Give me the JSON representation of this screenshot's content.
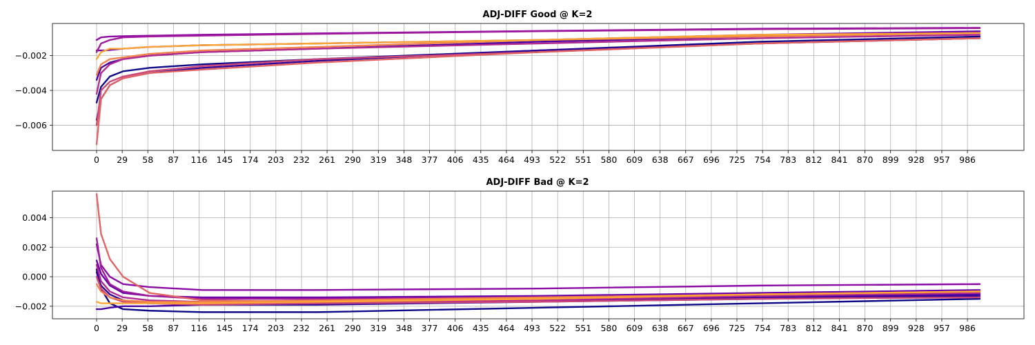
{
  "chart_data": [
    {
      "type": "line",
      "title": "ADJ-DIFF Good @ K=2",
      "xlabel": "",
      "ylabel": "",
      "xlim": [
        -50,
        1050
      ],
      "ylim": [
        -0.00745,
        -0.00015
      ],
      "x_ticks": [
        0,
        29,
        58,
        87,
        116,
        145,
        174,
        203,
        232,
        261,
        290,
        319,
        348,
        377,
        406,
        435,
        464,
        493,
        522,
        551,
        580,
        609,
        638,
        667,
        696,
        725,
        754,
        783,
        812,
        841,
        870,
        899,
        928,
        957,
        986
      ],
      "y_ticks": [
        -0.006,
        -0.004,
        -0.002
      ],
      "y_tick_labels": [
        "−0.006",
        "−0.004",
        "−0.002"
      ],
      "grid": true,
      "legend": "none",
      "series": [
        {
          "color": "#0d0887",
          "x": [
            0,
            5,
            15,
            30,
            60,
            120,
            250,
            500,
            750,
            1000
          ],
          "y": [
            -0.0047,
            -0.0038,
            -0.0032,
            -0.0029,
            -0.0027,
            -0.0025,
            -0.0022,
            -0.0017,
            -0.0012,
            -0.0009
          ]
        },
        {
          "color": "#2f0596",
          "x": [
            0,
            5,
            15,
            30,
            60,
            120,
            250,
            500,
            750,
            1000
          ],
          "y": [
            -0.0057,
            -0.0045,
            -0.0037,
            -0.0033,
            -0.003,
            -0.0027,
            -0.0023,
            -0.0017,
            -0.0013,
            -0.001
          ]
        },
        {
          "color": "#4903a0",
          "x": [
            0,
            5,
            15,
            30,
            60,
            120,
            250,
            500,
            750,
            1000
          ],
          "y": [
            -0.0034,
            -0.0027,
            -0.0024,
            -0.0022,
            -0.002,
            -0.0018,
            -0.0016,
            -0.0012,
            -0.0009,
            -0.0007
          ]
        },
        {
          "color": "#6a00a8",
          "x": [
            0,
            3,
            10,
            30,
            60,
            120,
            250,
            500,
            750,
            1000
          ],
          "y": [
            -0.0017,
            -0.0017,
            -0.0017,
            -0.0016,
            -0.0015,
            -0.0014,
            -0.0013,
            -0.0011,
            -0.0008,
            -0.0006
          ]
        },
        {
          "color": "#8b0aa5",
          "x": [
            0,
            5,
            15,
            30,
            60,
            120,
            250,
            500,
            750,
            1000
          ],
          "y": [
            -0.0011,
            -0.00095,
            -0.0009,
            -0.00088,
            -0.00085,
            -0.0008,
            -0.00072,
            -0.00058,
            -0.00045,
            -0.0004
          ]
        },
        {
          "color": "#a01a9c",
          "x": [
            0,
            5,
            15,
            30,
            60,
            120,
            250,
            500,
            750,
            1000
          ],
          "y": [
            -0.0018,
            -0.0013,
            -0.0011,
            -0.00095,
            -0.0009,
            -0.00085,
            -0.00075,
            -0.0006,
            -0.00048,
            -0.00042
          ]
        },
        {
          "color": "#b12a90",
          "x": [
            0,
            5,
            15,
            30,
            60,
            120,
            250,
            500,
            750,
            1000
          ],
          "y": [
            -0.0042,
            -0.003,
            -0.0025,
            -0.0022,
            -0.002,
            -0.0018,
            -0.0016,
            -0.0013,
            -0.001,
            -0.0008
          ]
        },
        {
          "color": "#cc4778",
          "x": [
            0,
            5,
            15,
            30,
            60,
            120,
            250,
            500,
            750,
            1000
          ],
          "y": [
            -0.006,
            -0.004,
            -0.0035,
            -0.0032,
            -0.0029,
            -0.0026,
            -0.0022,
            -0.0018,
            -0.0013,
            -0.001
          ]
        },
        {
          "color": "#e16462",
          "x": [
            0,
            5,
            15,
            30,
            60,
            120,
            250,
            500,
            750,
            1000
          ],
          "y": [
            -0.0071,
            -0.0045,
            -0.0037,
            -0.0033,
            -0.003,
            -0.0028,
            -0.0024,
            -0.0018,
            -0.0013,
            -0.001
          ]
        },
        {
          "color": "#f2844b",
          "x": [
            0,
            5,
            15,
            30,
            60,
            120,
            250,
            500,
            750,
            1000
          ],
          "y": [
            -0.0031,
            -0.0025,
            -0.0022,
            -0.0021,
            -0.0019,
            -0.0017,
            -0.0015,
            -0.0011,
            -0.0009,
            -0.0007
          ]
        },
        {
          "color": "#fca636",
          "x": [
            0,
            5,
            15,
            30,
            60,
            120,
            250,
            500,
            750,
            1000
          ],
          "y": [
            -0.0022,
            -0.0018,
            -0.0016,
            -0.0016,
            -0.0015,
            -0.0014,
            -0.0013,
            -0.0011,
            -0.0008,
            -0.0007
          ]
        }
      ]
    },
    {
      "type": "line",
      "title": "ADJ-DIFF Bad @ K=2",
      "xlabel": "",
      "ylabel": "",
      "xlim": [
        -50,
        1050
      ],
      "ylim": [
        -0.00285,
        0.0058
      ],
      "x_ticks": [
        0,
        29,
        58,
        87,
        116,
        145,
        174,
        203,
        232,
        261,
        290,
        319,
        348,
        377,
        406,
        435,
        464,
        493,
        522,
        551,
        580,
        609,
        638,
        667,
        696,
        725,
        754,
        783,
        812,
        841,
        870,
        899,
        928,
        957,
        986
      ],
      "y_ticks": [
        -0.002,
        0.0,
        0.002,
        0.004
      ],
      "y_tick_labels": [
        "−0.002",
        "0.000",
        "0.002",
        "0.004"
      ],
      "grid": true,
      "legend": "none",
      "series": [
        {
          "color": "#0d0887",
          "x": [
            0,
            5,
            15,
            30,
            60,
            120,
            250,
            500,
            750,
            1000
          ],
          "y": [
            0.0005,
            -0.0008,
            -0.0018,
            -0.0022,
            -0.0023,
            -0.0024,
            -0.0024,
            -0.0021,
            -0.0018,
            -0.0015
          ]
        },
        {
          "color": "#2f0596",
          "x": [
            0,
            5,
            15,
            30,
            60,
            120,
            250,
            500,
            750,
            1000
          ],
          "y": [
            0.0003,
            -0.0006,
            -0.0012,
            -0.0016,
            -0.0018,
            -0.0019,
            -0.0019,
            -0.0017,
            -0.0015,
            -0.0013
          ]
        },
        {
          "color": "#4903a0",
          "x": [
            0,
            5,
            15,
            30,
            60,
            120,
            250,
            500,
            750,
            1000
          ],
          "y": [
            -0.0022,
            -0.0022,
            -0.0021,
            -0.002,
            -0.002,
            -0.0019,
            -0.0018,
            -0.0016,
            -0.0014,
            -0.0012
          ]
        },
        {
          "color": "#6a00a8",
          "x": [
            0,
            5,
            15,
            30,
            60,
            120,
            250,
            500,
            750,
            1000
          ],
          "y": [
            0.0011,
            0.0002,
            -0.0006,
            -0.0011,
            -0.0013,
            -0.0014,
            -0.0014,
            -0.0013,
            -0.0011,
            -0.0009
          ]
        },
        {
          "color": "#8b0aa5",
          "x": [
            0,
            5,
            15,
            30,
            60,
            120,
            250,
            500,
            750,
            1000
          ],
          "y": [
            0.0022,
            0.0008,
            0.0,
            -0.0005,
            -0.0007,
            -0.0009,
            -0.0009,
            -0.0008,
            -0.0006,
            -0.0005
          ]
        },
        {
          "color": "#a01a9c",
          "x": [
            0,
            5,
            15,
            30,
            60,
            120,
            250,
            500,
            750,
            1000
          ],
          "y": [
            0.0026,
            0.0006,
            -0.0005,
            -0.001,
            -0.0013,
            -0.0015,
            -0.0015,
            -0.0014,
            -0.0012,
            -0.001
          ]
        },
        {
          "color": "#b12a90",
          "x": [
            0,
            5,
            15,
            30,
            60,
            120,
            250,
            500,
            750,
            1000
          ],
          "y": [
            0.0008,
            -0.0003,
            -0.001,
            -0.0014,
            -0.0016,
            -0.0017,
            -0.0017,
            -0.0016,
            -0.0013,
            -0.0011
          ]
        },
        {
          "color": "#cc4778",
          "x": [
            0,
            5,
            15,
            30,
            60,
            120,
            250,
            500,
            750,
            1000
          ],
          "y": [
            0.0,
            -0.0008,
            -0.0014,
            -0.0017,
            -0.0018,
            -0.0019,
            -0.0018,
            -0.0017,
            -0.0015,
            -0.0014
          ]
        },
        {
          "color": "#e16462",
          "x": [
            0,
            5,
            15,
            30,
            60,
            120,
            250,
            500,
            750,
            1000
          ],
          "y": [
            0.0056,
            0.0029,
            0.0012,
            0.0,
            -0.0011,
            -0.0016,
            -0.0017,
            -0.0015,
            -0.0012,
            -0.001
          ]
        },
        {
          "color": "#f2844b",
          "x": [
            0,
            5,
            15,
            30,
            60,
            120,
            250,
            500,
            750,
            1000
          ],
          "y": [
            -0.0005,
            -0.001,
            -0.0014,
            -0.0016,
            -0.0017,
            -0.0017,
            -0.0016,
            -0.0014,
            -0.0012,
            -0.001
          ]
        },
        {
          "color": "#fca636",
          "x": [
            0,
            5,
            15,
            30,
            60,
            120,
            250,
            500,
            750,
            1000
          ],
          "y": [
            -0.0017,
            -0.0018,
            -0.0018,
            -0.0018,
            -0.0018,
            -0.0018,
            -0.0017,
            -0.0015,
            -0.0012,
            -0.001
          ]
        }
      ]
    }
  ]
}
